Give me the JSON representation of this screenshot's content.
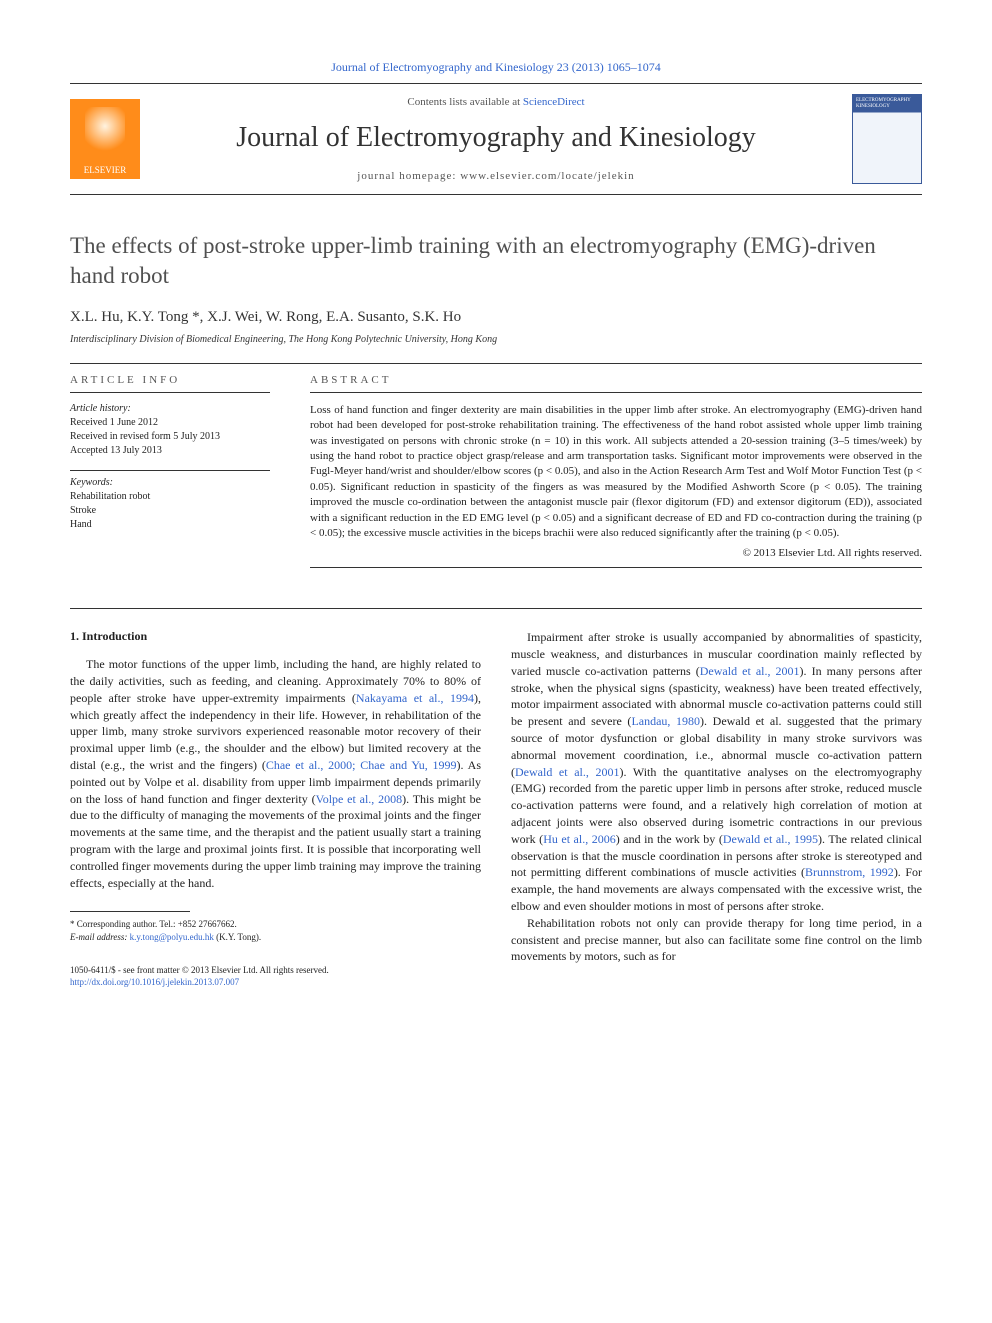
{
  "header": {
    "citation": "Journal of Electromyography and Kinesiology 23 (2013) 1065–1074",
    "contents_prefix": "Contents lists available at ",
    "contents_link": "ScienceDirect",
    "journal_name": "Journal of Electromyography and Kinesiology",
    "homepage_prefix": "journal homepage: ",
    "homepage_url": "www.elsevier.com/locate/jelekin",
    "publisher": "ELSEVIER",
    "cover_label": "ELECTROMYOGRAPHY KINESIOLOGY"
  },
  "article": {
    "title": "The effects of post-stroke upper-limb training with an electromyography (EMG)-driven hand robot",
    "authors": "X.L. Hu, K.Y. Tong *, X.J. Wei, W. Rong, E.A. Susanto, S.K. Ho",
    "affiliation": "Interdisciplinary Division of Biomedical Engineering, The Hong Kong Polytechnic University, Hong Kong"
  },
  "meta": {
    "info_heading": "ARTICLE INFO",
    "history_label": "Article history:",
    "received": "Received 1 June 2012",
    "revised": "Received in revised form 5 July 2013",
    "accepted": "Accepted 13 July 2013",
    "keywords_label": "Keywords:",
    "keywords": "Rehabilitation robot\nStroke\nHand"
  },
  "abstract": {
    "heading": "ABSTRACT",
    "text": "Loss of hand function and finger dexterity are main disabilities in the upper limb after stroke. An electromyography (EMG)-driven hand robot had been developed for post-stroke rehabilitation training. The effectiveness of the hand robot assisted whole upper limb training was investigated on persons with chronic stroke (n = 10) in this work. All subjects attended a 20-session training (3–5 times/week) by using the hand robot to practice object grasp/release and arm transportation tasks. Significant motor improvements were observed in the Fugl-Meyer hand/wrist and shoulder/elbow scores (p < 0.05), and also in the Action Research Arm Test and Wolf Motor Function Test (p < 0.05). Significant reduction in spasticity of the fingers as was measured by the Modified Ashworth Score (p < 0.05). The training improved the muscle co-ordination between the antagonist muscle pair (flexor digitorum (FD) and extensor digitorum (ED)), associated with a significant reduction in the ED EMG level (p < 0.05) and a significant decrease of ED and FD co-contraction during the training (p < 0.05); the excessive muscle activities in the biceps brachii were also reduced significantly after the training (p < 0.05).",
    "copyright": "© 2013 Elsevier Ltd. All rights reserved."
  },
  "body": {
    "section_heading": "1. Introduction",
    "col1_p1_a": "The motor functions of the upper limb, including the hand, are highly related to the daily activities, such as feeding, and cleaning. Approximately 70% to 80% of people after stroke have upper-extremity impairments (",
    "col1_ref1": "Nakayama et al., 1994",
    "col1_p1_b": "), which greatly affect the independency in their life. However, in rehabilitation of the upper limb, many stroke survivors experienced reasonable motor recovery of their proximal upper limb (e.g., the shoulder and the elbow) but limited recovery at the distal (e.g., the wrist and the fingers) (",
    "col1_ref2": "Chae et al., 2000; Chae and Yu, 1999",
    "col1_p1_c": "). As pointed out by Volpe et al. disability from upper limb impairment depends primarily on the loss of hand function and finger dexterity (",
    "col1_ref3": "Volpe et al., 2008",
    "col1_p1_d": "). This might be due to the difficulty of managing the movements of the proximal joints and the finger movements at the same time, and the therapist and the patient usually start a training program with the large and proximal joints first. It is possible that incorporating well controlled finger movements during the upper limb training may improve the training effects, especially at the hand.",
    "col2_p1_a": "Impairment after stroke is usually accompanied by abnormalities of spasticity, muscle weakness, and disturbances in muscular coordination mainly reflected by varied muscle co-activation patterns (",
    "col2_ref1": "Dewald et al., 2001",
    "col2_p1_b": "). In many persons after stroke, when the physical signs (spasticity, weakness) have been treated effectively, motor impairment associated with abnormal muscle co-activation patterns could still be present and severe (",
    "col2_ref2": "Landau, 1980",
    "col2_p1_c": "). Dewald et al. suggested that the primary source of motor dysfunction or global disability in many stroke survivors was abnormal movement coordination, i.e., abnormal muscle co-activation pattern (",
    "col2_ref3": "Dewald et al., 2001",
    "col2_p1_d": "). With the quantitative analyses on the electromyography (EMG) recorded from the paretic upper limb in persons after stroke, reduced muscle co-activation patterns were found, and a relatively high correlation of motion at adjacent joints were also observed during isometric contractions in our previous work (",
    "col2_ref4": "Hu et al., 2006",
    "col2_p1_e": ") and in the work by (",
    "col2_ref5": "Dewald et al., 1995",
    "col2_p1_f": "). The related clinical observation is that the muscle coordination in persons after stroke is stereotyped and not permitting different combinations of muscle activities (",
    "col2_ref6": "Brunnstrom, 1992",
    "col2_p1_g": "). For example, the hand movements are always compensated with the excessive wrist, the elbow and even shoulder motions in most of persons after stroke.",
    "col2_p2": "Rehabilitation robots not only can provide therapy for long time period, in a consistent and precise manner, but also can facilitate some fine control on the limb movements by motors, such as for"
  },
  "footnote": {
    "corr_label": "* Corresponding author. Tel.: +852 27667662.",
    "email_label": "E-mail address: ",
    "email": "k.y.tong@polyu.edu.hk",
    "email_suffix": " (K.Y. Tong)."
  },
  "footer": {
    "line1": "1050-6411/$ - see front matter © 2013 Elsevier Ltd. All rights reserved.",
    "doi": "http://dx.doi.org/10.1016/j.jelekin.2013.07.007"
  },
  "colors": {
    "link": "#3366cc",
    "elsevier_orange": "#ff8c1a",
    "text": "#222222",
    "title_gray": "#505050"
  }
}
